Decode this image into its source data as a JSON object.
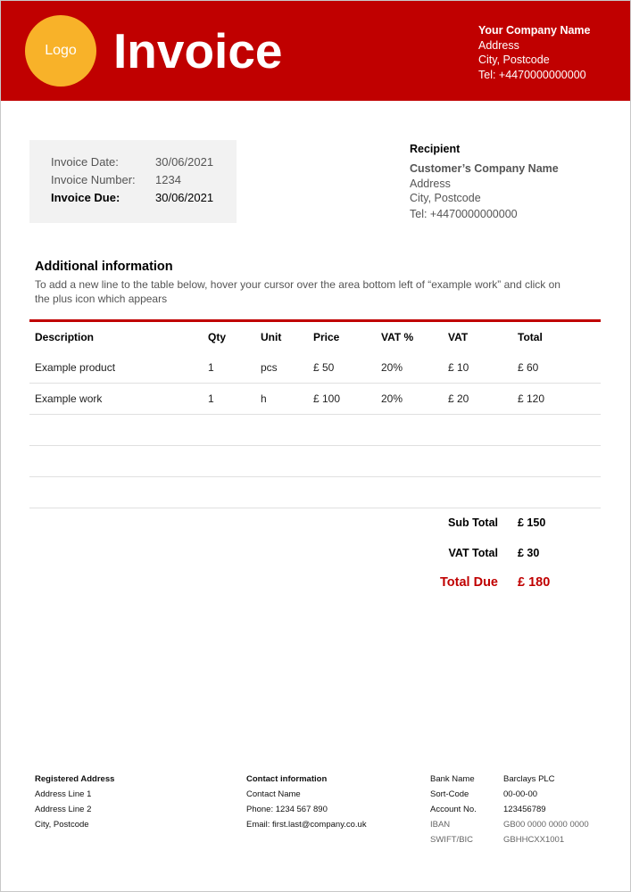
{
  "header": {
    "logo": "Logo",
    "title": "Invoice",
    "company": {
      "name": "Your Company Name",
      "address": "Address",
      "city": "City, Postcode",
      "tel": "Tel: +4470000000000"
    }
  },
  "invoice_info": {
    "date_label": "Invoice Date:",
    "date": "30/06/2021",
    "number_label": "Invoice Number:",
    "number": "1234",
    "due_label": "Invoice Due:",
    "due": "30/06/2021"
  },
  "recipient": {
    "heading": "Recipient",
    "name": "Customer’s Company Name",
    "address": "Address",
    "city": "City, Postcode",
    "tel": "Tel: +4470000000000"
  },
  "additional": {
    "heading": "Additional information",
    "line1": "To add a new line to the table below, hover your cursor over the area bottom left of “example work” and click on",
    "line2": "the plus icon which appears"
  },
  "table": {
    "headers": [
      "Description",
      "Qty",
      "Unit",
      "Price",
      "VAT %",
      "VAT",
      "Total"
    ],
    "rows": [
      [
        "Example product",
        "1",
        "pcs",
        "£ 50",
        "20%",
        "£ 10",
        "£ 60"
      ],
      [
        "Example work",
        "1",
        "h",
        "£ 100",
        "20%",
        "£ 20",
        "£ 120"
      ]
    ]
  },
  "totals": {
    "sub_label": "Sub Total",
    "sub": "£ 150",
    "vat_label": "VAT Total",
    "vat": "£ 30",
    "due_label": "Total Due",
    "due": "£ 180"
  },
  "footer": {
    "registered": {
      "heading": "Registered Address",
      "lines": [
        "Address Line 1",
        "Address Line 2",
        "City, Postcode"
      ]
    },
    "contact": {
      "heading": "Contact information",
      "lines": [
        "Contact Name",
        "Phone: 1234 567 890",
        "Email: first.last@company.co.uk"
      ]
    },
    "bank": [
      [
        "Bank Name",
        "Barclays PLC"
      ],
      [
        "Sort-Code",
        "00-00-00"
      ],
      [
        "Account No.",
        "123456789"
      ],
      [
        "IBAN",
        "GB00 0000 0000 0000"
      ],
      [
        "SWIFT/BIC",
        "GBHHCXX1001"
      ]
    ]
  },
  "colors": {
    "brand": "#c00000",
    "logo": "#f8b229"
  }
}
